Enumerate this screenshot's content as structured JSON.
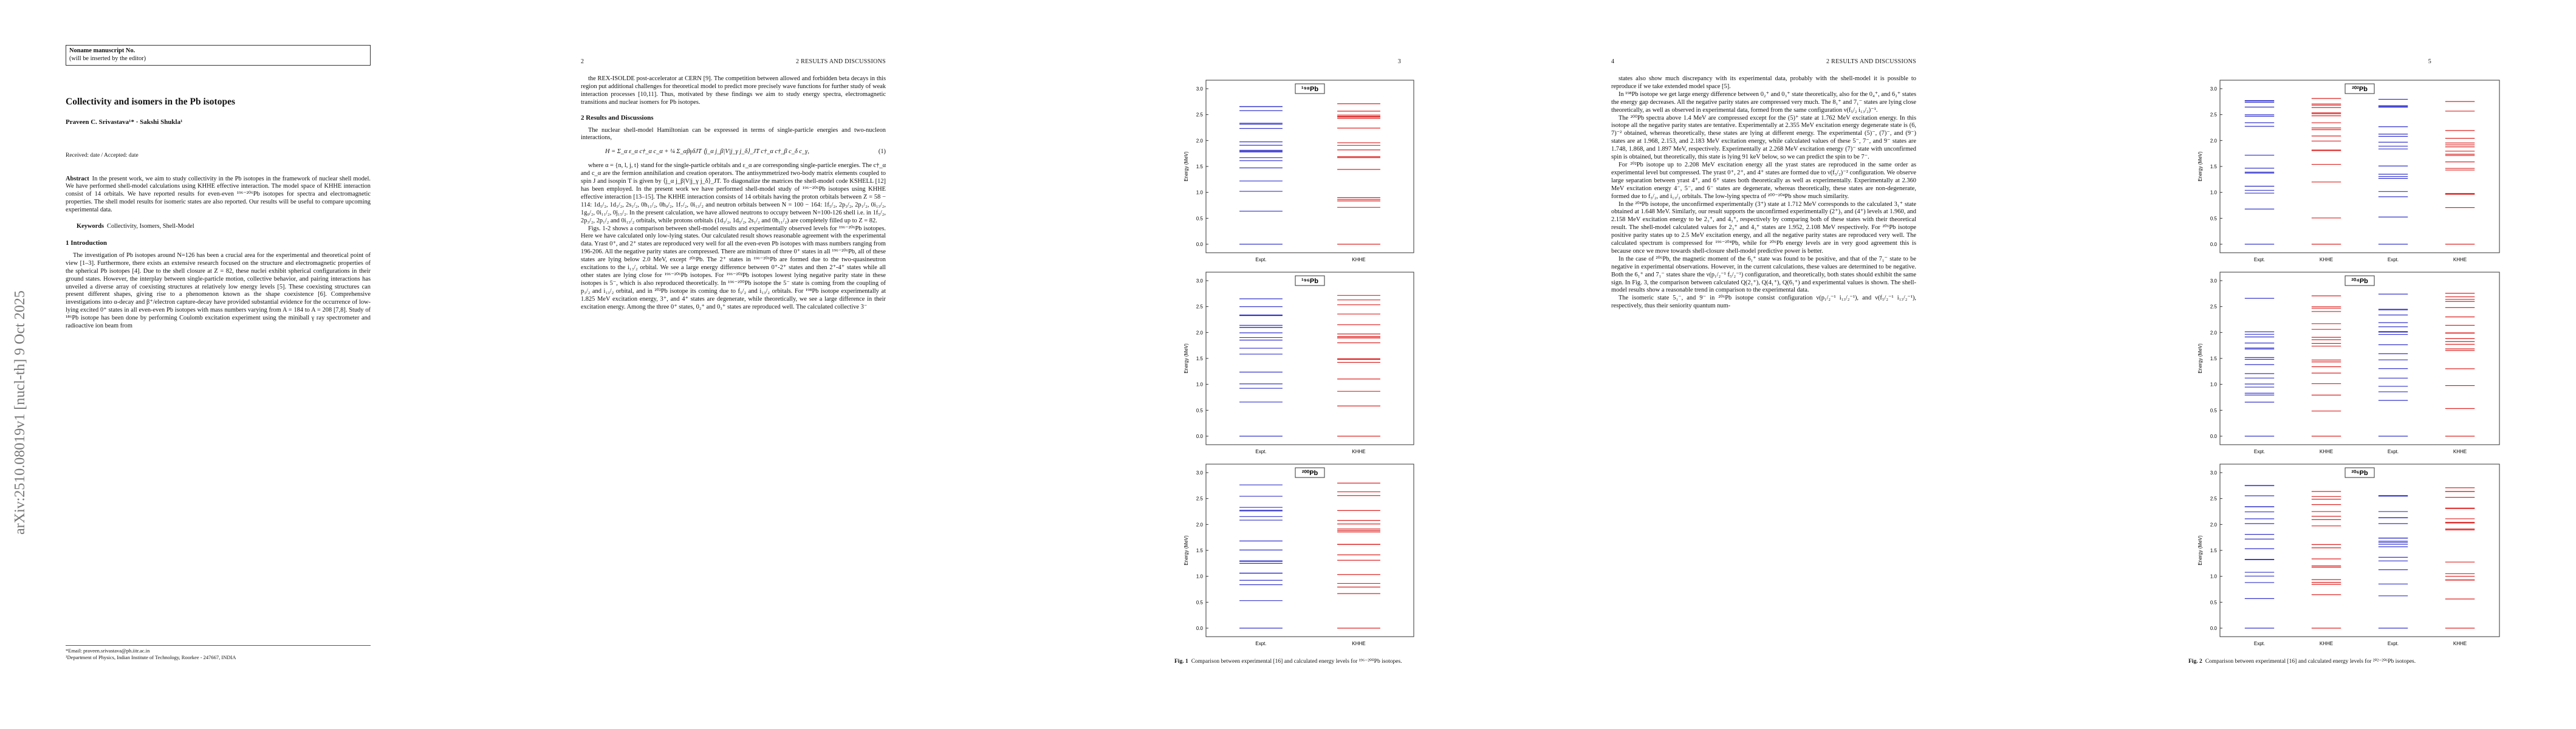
{
  "arxiv_id": "arXiv:2510.08019v1 [nucl-th] 9 Oct 2025",
  "pages": [
    {
      "blocks": [
        {
          "kind": "box",
          "lines": [
            "Noname manuscript No.",
            "(will be inserted by the editor)"
          ]
        },
        {
          "kind": "title",
          "text": "Collectivity and isomers in the Pb isotopes"
        },
        {
          "kind": "authors",
          "text": "Praveen C. Srivastava¹* · Sakshi Shukla¹"
        },
        {
          "kind": "dates",
          "text": "Received: date / Accepted: date"
        },
        {
          "kind": "abstract",
          "label": "Abstract",
          "text": "In the present work, we aim to study collectivity in the Pb isotopes in the framework of nuclear shell model. We have performed shell-model calculations using KHHE effective interaction. The model space of KHHE interaction consist of 14 orbitals. We have reported results for even-even ¹⁹⁶⁻²⁰⁶Pb isotopes for spectra and electromagnetic properties. The shell model results for isomeric states are also reported. Our results will be useful to compare upcoming experimental data."
        },
        {
          "kind": "keywords",
          "label": "Keywords",
          "text": "Collectivity, Isomers, Shell-Model"
        },
        {
          "kind": "heading",
          "text": "1 Introduction"
        },
        {
          "kind": "para",
          "text": "The investigation of Pb isotopes around N=126 has been a crucial area for the experimental and theoretical point of view [1–3]. Furthermore, there exists an extensive research focused on the structure and electromagnetic properties of the spherical Pb isotopes [4]. Due to the shell closure at Z = 82, these nuclei exhibit spherical configurations in their ground states. However, the interplay between single-particle motion, collective behavior, and pairing interactions has unveiled a diverse array of coexisting structures at relatively low energy levels [5]. These coexisting structures can present different shapes, giving rise to a phenomenon known as the shape coexistence [6]. Comprehensive investigations into α-decay and β⁺/electron capture-decay have provided substantial evidence for the occurrence of low-lying excited 0⁺ states in all even-even Pb isotopes with mass numbers varying from A = 184 to A = 208 [7,8]. Study of ¹⁸⁶Pb isotope has been done by performing Coulomb excitation experiment using the miniball γ ray spectrometer and radioactive ion beam from"
        }
      ],
      "footnote": [
        "*Email: praveen.srivastava@ph.iitr.ac.in",
        "¹Department of Physics, Indian Institute of Technology, Roorkee - 247667, INDIA"
      ]
    },
    {
      "header": {
        "left": "2",
        "right": "2 RESULTS AND DISCUSSIONS"
      },
      "blocks": [
        {
          "kind": "para",
          "text": "the REX-ISOLDE post-accelerator at CERN [9]. The competition between allowed and forbidden beta decays in this region put additional challenges for theoretical model to predict more precisely wave functions for further study of weak interaction processes [10,11]. Thus, motivated by these findings we aim to study energy spectra, electromagnetic transitions and nuclear isomers for Pb isotopes."
        },
        {
          "kind": "heading",
          "text": "2 Results and Discussions"
        },
        {
          "kind": "para",
          "text": "The nuclear shell-model Hamiltonian can be expressed in terms of single-particle energies and two-nucleon interactions,"
        },
        {
          "kind": "equation",
          "text": "H = Σ_α ε_α c†_α c_α + ¼ Σ_αβγδJT ⟨j_α j_β|V|j_γ j_δ⟩_JT c†_α c†_β c_δ c_γ,",
          "number": "(1)"
        },
        {
          "kind": "para",
          "text": "where α = {n, l, j, t} stand for the single-particle orbitals and ε_α are corresponding single-particle energies. The c†_α and c_α are the fermion annihilation and creation operators. The antisymmetrized two-body matrix elements coupled to spin J and isospin T is given by ⟨j_α j_β|V|j_γ j_δ⟩_JT. To diagonalize the matrices the shell-model code KSHELL [12] has been employed. In the present work we have performed shell-model study of ¹⁹⁶⁻²⁰⁶Pb isotopes using KHHE effective interaction [13–15]. The KHHE interaction consists of 14 orbitals having the proton orbitals between Z = 58 − 114: 1d₅/₂, 1d₃/₂, 2s₁/₂, 0h₁₁/₂, 0h₉/₂, 1f₇/₂, 0i₁₃/₂ and neutron orbitals between N = 100 − 164: 1f₅/₂, 2p₃/₂, 2p₁/₂, 0i₁₃/₂, 1g₉/₂, 0i₁₁/₂, 0j₁₅/₂. In the present calculation, we have allowed neutrons to occupy between N=100-126 shell i.e. in 1f₅/₂, 2p₃/₂, 2p₁/₂ and 0i₁₃/₂ orbitals, while protons orbitals (1d₃/₂, 1d₅/₂, 2s₁/₂ and 0h₁₁/₂) are completely filled up to Z = 82."
        },
        {
          "kind": "para",
          "text": "Figs. 1-2 shows a comparison between shell-model results and experimentally observed levels for ¹⁹⁶⁻²⁰⁶Pb isotopes. Here we have calculated only low-lying states. Our calculated result shows reasonable agreement with the experimental data. Yrast 0⁺, and 2⁺ states are reproduced very well for all the even-even Pb isotopes with mass numbers ranging from 196-206. All the negative parity states are compressed. There are minimum of three 0⁺ states in all ¹⁹⁶⁻²⁰⁶Pb, all of these states are lying below 2.0 MeV, except ²⁰⁶Pb. The 2⁺ states in ¹⁹⁶⁻²⁰⁶Pb are formed due to the two-quasineutron excitations to the i₁₃/₂ orbital. We see a large energy difference between 0⁺-2⁺ states and then 2⁺-4⁺ states while all other states are lying close for ¹⁹⁶⁻²⁰⁶Pb isotopes. For ¹⁹⁶⁻²⁰²Pb isotopes lowest lying negative parity state in these isotopes is 5⁻, which is also reproduced theoretically. In ¹⁹⁶⁻²⁰⁰Pb isotope the 5⁻ state is coming from the coupling of p₃/₂ and i₁₃/₂ orbital, and in ²⁰²Pb isotope its coming due to f₅/₂ and i₁₃/₂ orbitals. For ¹⁹⁸Pb isotope experimentally at 1.825 MeV excitation energy, 3⁺, and 4⁺ states are degenerate, while theoretically, we see a large difference in their excitation energy. Among the three 0⁺ states, 0₂⁺ and 0₃⁺ states are reproduced well. The calculated collective 3⁻"
        }
      ]
    },
    {
      "header": {
        "right": "3"
      },
      "figure": {
        "label": "Fig. 1",
        "caption": "Comparison between experimental [16] and calculated energy levels for ¹⁹⁶⁻²⁰⁰Pb isotopes.",
        "ylabel": "Energy (MeV)",
        "panels": [
          {
            "title": "¹⁹⁸Pb",
            "columns": [
              "Expt.",
              "KHHE"
            ],
            "yticks": [
              "3.0",
              "2.5",
              "2.0",
              "1.5",
              "1.0",
              "0.5",
              "0.0"
            ]
          },
          {
            "title": "¹⁹⁶Pb",
            "columns": [
              "Expt.",
              "KHHE"
            ],
            "yticks": [
              "3.0",
              "2.5",
              "2.0",
              "1.5",
              "1.0",
              "0.5",
              "0.0"
            ]
          },
          {
            "title": "²⁰⁰Pb",
            "columns": [
              "Expt.",
              "KHHE"
            ],
            "yticks": [
              "3.0",
              "2.5",
              "2.0",
              "1.5",
              "1.0",
              "0.5",
              "0.0"
            ]
          }
        ]
      }
    },
    {
      "header": {
        "left": "4",
        "right": "2 RESULTS AND DISCUSSIONS"
      },
      "blocks": [
        {
          "kind": "para",
          "text": "states also show much discrepancy with its experimental data, probably with the shell-model it is possible to reproduce if we take extended model space [5]."
        },
        {
          "kind": "para",
          "text": "In ¹⁹⁸Pb isotope we get large energy difference between 0₂⁺ and 0₃⁺ state theoretically, also for the 0₄⁺, and 6₂⁺ states the energy gap decreases. All the negative parity states are compressed very much. The 8₁⁺ and 7₁⁻ states are lying close theoretically, as well as observed in experimental data, formed from the same configuration ν(f₅/₂ i₁₃/₂)⁻¹."
        },
        {
          "kind": "para",
          "text": "The ²⁰⁰Pb spectra above 1.4 MeV are compressed except for the (5)⁺ state at 1.762 MeV excitation energy. In this isotope all the negative parity states are tentative. Experimentally at 2.355 MeV excitation energy degenerate state is (6, 7)⁻² obtained, whereas theoretically, these states are lying at different energy. The experimental (5)⁻, (7)⁻, and (9⁻) states are at 1.968, 2.153, and 2.183 MeV excitation energy, while calculated values of these 5⁻, 7⁻, and 9⁻ states are 1.748, 1.868, and 1.897 MeV, respectively. Experimentally at 2.268 MeV excitation energy (7)⁻ state with unconfirmed spin is obtained, but theoretically, this state is lying 91 keV below, so we can predict the spin to be 7⁻."
        },
        {
          "kind": "para",
          "text": "For ²⁰²Pb isotope up to 2.208 MeV excitation energy all the yrast states are reproduced in the same order as experimental level but compressed. The yrast 0⁺, 2⁺, and 4⁺ states are formed due to ν(f₅/₂)⁻² configuration. We observe large separation between yrast 4⁺, and 6⁺ states both theoretically as well as experimentally. Experimentally at 2.360 MeV excitation energy 4⁻, 5⁻, and 6⁻ states are degenerate, whereas theoretically, these states are non-degenerate, formed due to f₅/₂, and i₁₃/₂ orbitals. The low-lying spectra of ²⁰⁰⁻²⁰⁴Pb show much similarity."
        },
        {
          "kind": "para",
          "text": "In the ²⁰⁴Pb isotope, the unconfirmed experimentally (3⁺) state at 1.712 MeV corresponds to the calculated 3₁⁺ state obtained at 1.648 MeV. Similarly, our result supports the unconfirmed experimentally (2⁺)₃ and (4⁺) levels at 1.960, and 2.158 MeV excitation energy to be 2₃⁺, and 4₃⁺, respectively by comparing both of these states with their theoretical result. The shell-model calculated values for 2₃⁺ and 4₃⁺ states are 1.952, 2.108 MeV respectively. For ²⁰⁶Pb isotope positive parity states up to 2.5 MeV excitation energy, and all the negative parity states are reproduced very well. The calculated spectrum is compressed for ¹⁹⁶⁻²⁰⁴Pb, while for ²⁰⁶Pb energy levels are in very good agreement this is because once we move towards shell-closure shell-model predictive power is better."
        },
        {
          "kind": "para",
          "text": "In the case of ²⁰⁶Pb, the magnetic moment of the 6₁⁺ state was found to be positive, and that of the 7₁⁻ state to be negative in experimental observations. However, in the current calculations, these values are determined to be negative. Both the 6₁⁺ and 7₁⁻ states share the ν(p₁/₂⁻¹ f₅/₂⁻¹) configuration, and theoretically, both states should exhibit the same sign. In Fig. 3, the comparison between calculated Q(2₁⁺), Q(4₁⁺), Q(6₁⁺) and experimental values is shown. The shell-model results show a reasonable trend in comparison to the experimental data."
        },
        {
          "kind": "para",
          "text": "The isomeric state 5₁⁻, and 9⁻ in ²⁰⁶Pb isotope consist configuration ν(p₁/₂⁻¹ i₁₃/₂⁻¹), and ν(f₅/₂⁻¹ i₁₃/₂⁻¹), respectively, thus their seniority quantum num-"
        }
      ]
    },
    {
      "header": {
        "right": "5"
      },
      "figure": {
        "label": "Fig. 2",
        "caption": "Comparison between experimental [16] and calculated energy levels for ²⁰²⁻²⁰⁶Pb isotopes.",
        "ylabel": "Energy (MeV)",
        "panels": [
          {
            "title": "²⁰²Pb",
            "columns": [
              "Expt.",
              "KHHE",
              "Expt.",
              "KHHE"
            ],
            "yticks": [
              "3.0",
              "2.5",
              "2.0",
              "1.5",
              "1.0",
              "0.5",
              "0.0"
            ]
          },
          {
            "title": "²⁰⁴Pb",
            "columns": [
              "Expt.",
              "KHHE",
              "Expt.",
              "KHHE"
            ],
            "yticks": [
              "3.0",
              "2.5",
              "2.0",
              "1.5",
              "1.0",
              "0.5",
              "0.0"
            ]
          },
          {
            "title": "²⁰⁶Pb",
            "columns": [
              "Expt.",
              "KHHE",
              "Expt.",
              "KHHE"
            ],
            "yticks": [
              "3.0",
              "2.5",
              "2.0",
              "1.5",
              "1.0",
              "0.5",
              "0.0"
            ]
          }
        ]
      }
    }
  ]
}
